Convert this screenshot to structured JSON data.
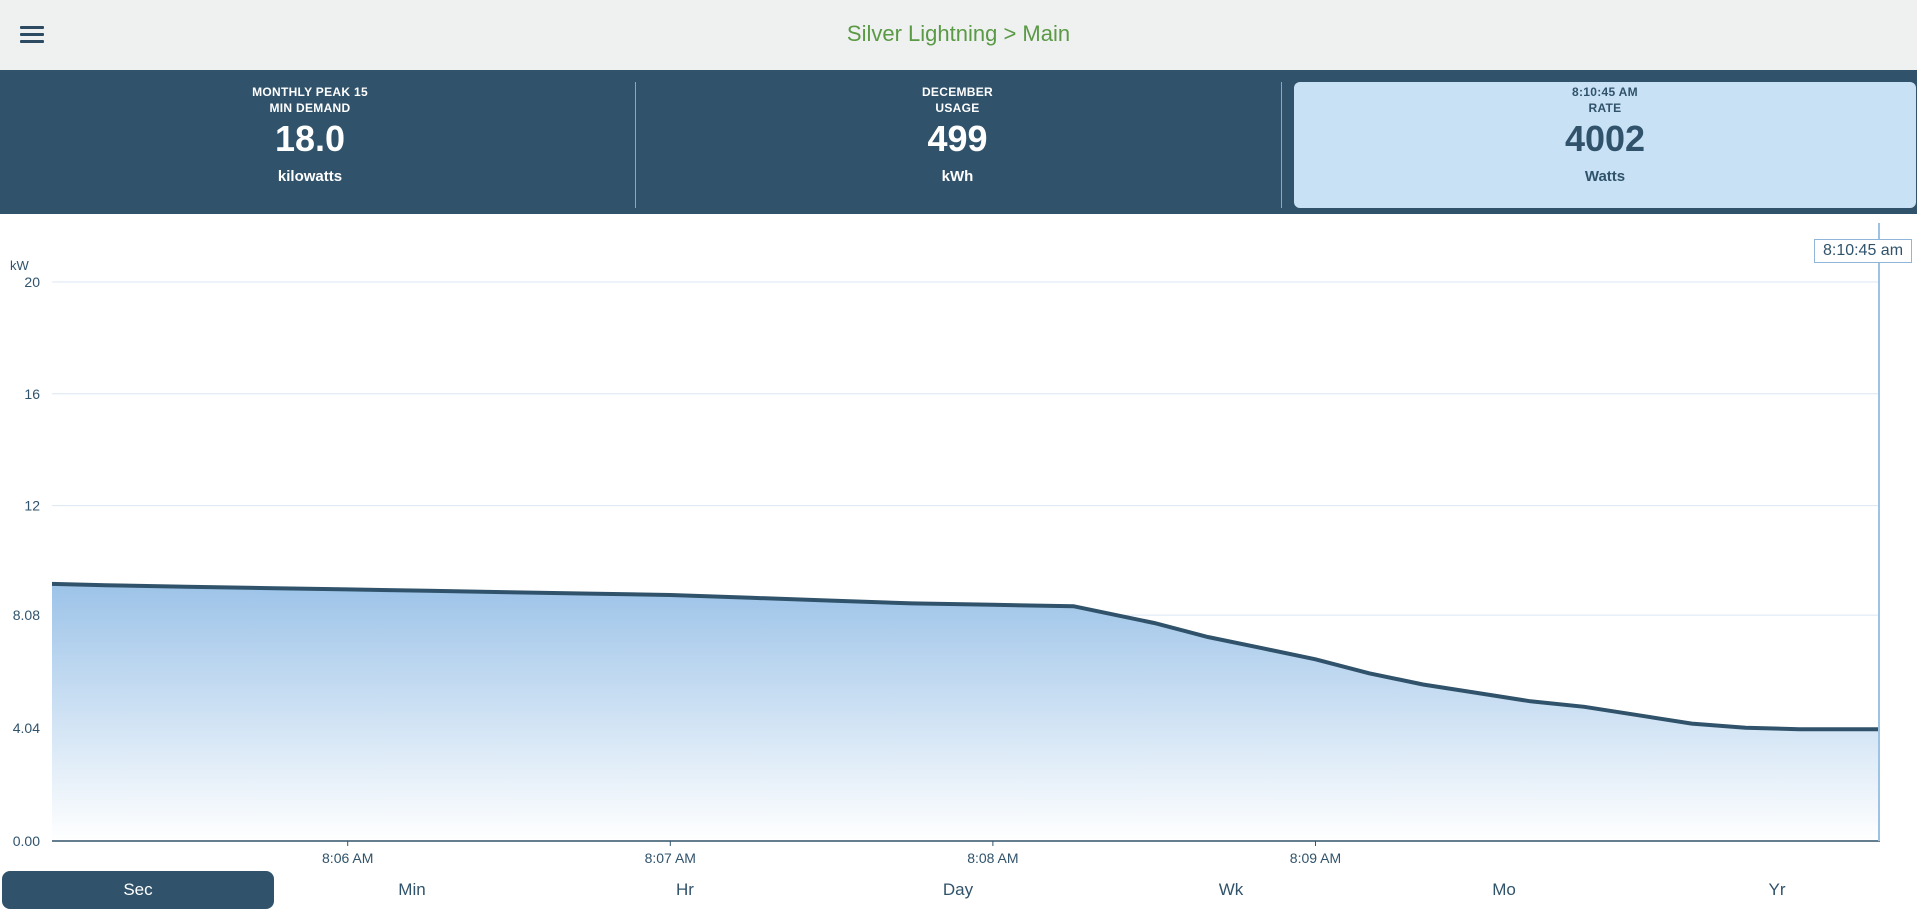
{
  "header": {
    "title": "Silver Lightning > Main"
  },
  "stats": [
    {
      "head_line1": "MONTHLY PEAK 15",
      "head_line2": "MIN DEMAND",
      "value": "18.0",
      "unit": "kilowatts"
    },
    {
      "head_line1": "DECEMBER",
      "head_line2": "USAGE",
      "value": "499",
      "unit": "kWh"
    },
    {
      "head_line1": "8:10:45 AM",
      "head_line2": "RATE",
      "value": "4002",
      "unit": "Watts"
    }
  ],
  "cursor": {
    "label": "8:10:45 am"
  },
  "tabs": [
    {
      "label": "Sec",
      "active": true
    },
    {
      "label": "Min",
      "active": false
    },
    {
      "label": "Hr",
      "active": false
    },
    {
      "label": "Day",
      "active": false
    },
    {
      "label": "Wk",
      "active": false
    },
    {
      "label": "Mo",
      "active": false
    },
    {
      "label": "Yr",
      "active": false
    }
  ],
  "colors": {
    "accent": "#30536b",
    "title_green": "#5a9a45",
    "fill_top": "#9cc3e8",
    "fill_bottom": "#ffffff"
  },
  "chart_data": {
    "type": "area",
    "ylabel": "kW",
    "y_ticks": [
      "20",
      "16",
      "12",
      "8.08",
      "4.04",
      "0.00"
    ],
    "ylim": [
      0,
      20
    ],
    "x_ticks": [
      "8:06 AM",
      "8:07 AM",
      "8:08 AM",
      "8:09 AM"
    ],
    "x": [
      "8:05:05",
      "8:05:15",
      "8:05:30",
      "8:05:45",
      "8:06:00",
      "8:06:15",
      "8:06:30",
      "8:06:45",
      "8:07:00",
      "8:07:15",
      "8:07:30",
      "8:07:45",
      "8:08:00",
      "8:08:15",
      "8:08:20",
      "8:08:30",
      "8:08:40",
      "8:08:50",
      "8:09:00",
      "8:09:10",
      "8:09:20",
      "8:09:30",
      "8:09:40",
      "8:09:50",
      "8:10:00",
      "8:10:10",
      "8:10:20",
      "8:10:30",
      "8:10:45"
    ],
    "values": [
      9.2,
      9.15,
      9.1,
      9.05,
      9.0,
      8.95,
      8.9,
      8.85,
      8.8,
      8.7,
      8.6,
      8.5,
      8.45,
      8.4,
      8.2,
      7.8,
      7.3,
      6.9,
      6.5,
      6.0,
      5.6,
      5.3,
      5.0,
      4.8,
      4.5,
      4.2,
      4.05,
      4.0,
      4.0
    ],
    "grid": true,
    "legend": "none"
  }
}
